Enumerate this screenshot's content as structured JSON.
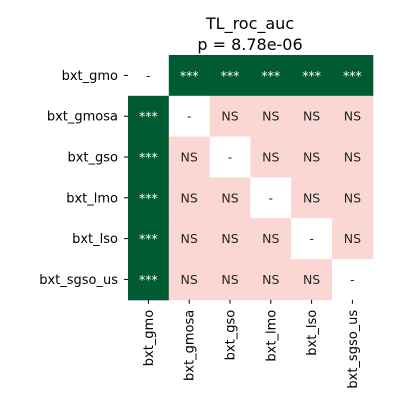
{
  "chart_data": {
    "type": "heatmap",
    "title_lines": [
      "TL_roc_auc",
      "p = 8.78e-06"
    ],
    "rows": [
      "bxt_gmo",
      "bxt_gmosa",
      "bxt_gso",
      "bxt_lmo",
      "bxt_lso",
      "bxt_sgso_us"
    ],
    "cols": [
      "bxt_gmo",
      "bxt_gmosa",
      "bxt_gso",
      "bxt_lmo",
      "bxt_lso",
      "bxt_sgso_us"
    ],
    "cells": [
      [
        "-",
        "***",
        "***",
        "***",
        "***",
        "***"
      ],
      [
        "***",
        "-",
        "NS",
        "NS",
        "NS",
        "NS"
      ],
      [
        "***",
        "NS",
        "-",
        "NS",
        "NS",
        "NS"
      ],
      [
        "***",
        "NS",
        "NS",
        "-",
        "NS",
        "NS"
      ],
      [
        "***",
        "NS",
        "NS",
        "NS",
        "-",
        "NS"
      ],
      [
        "***",
        "NS",
        "NS",
        "NS",
        "NS",
        "-"
      ]
    ],
    "colors": {
      "significant": "#005a32",
      "ns": "#fbd7d4",
      "diagonal": "#ffffff",
      "significant_text": "#ffffff",
      "other_text": "#262626"
    }
  }
}
